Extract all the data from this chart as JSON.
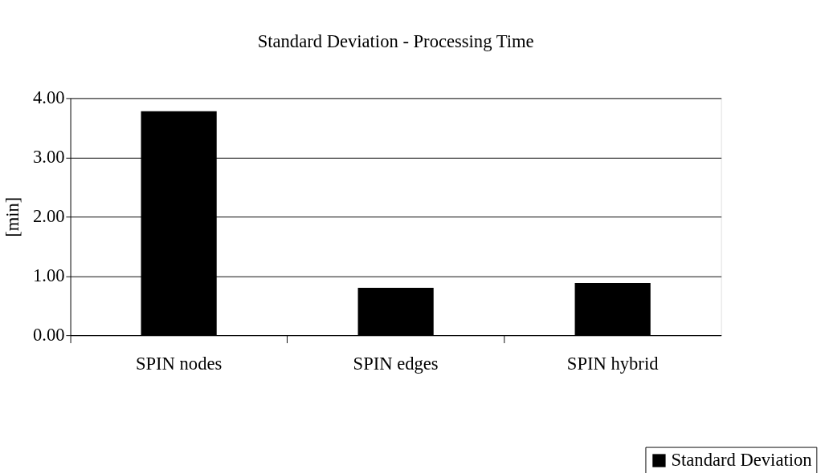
{
  "chart_data": {
    "type": "bar",
    "title": "Standard Deviation - Processing Time",
    "ylabel": "[min]",
    "categories": [
      "SPIN nodes",
      "SPIN edges",
      "SPIN hybrid"
    ],
    "series": [
      {
        "name": "Standard Deviation",
        "color": "#000000",
        "values": [
          3.78,
          0.8,
          0.88
        ]
      }
    ],
    "ylim": [
      0,
      4
    ],
    "yticks": [
      {
        "value": 0,
        "label": "0.00"
      },
      {
        "value": 1,
        "label": "1.00"
      },
      {
        "value": 2,
        "label": "2.00"
      },
      {
        "value": 3,
        "label": "3.00"
      },
      {
        "value": 4,
        "label": "4.00"
      }
    ],
    "grid": "y",
    "legend": "bottom right"
  }
}
